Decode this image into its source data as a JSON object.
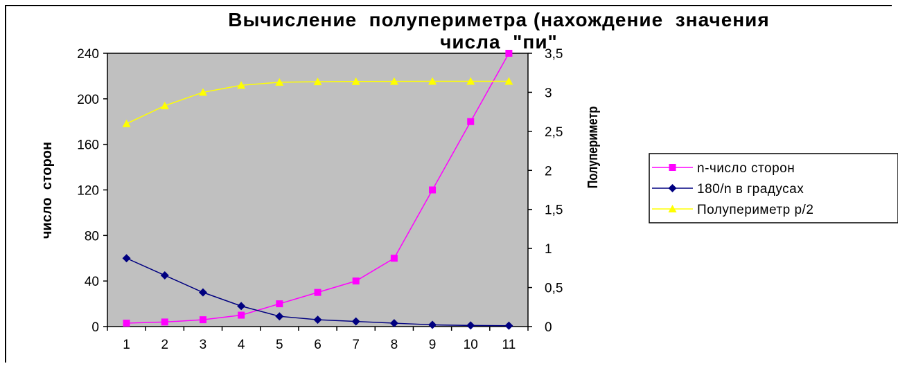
{
  "chart_data": {
    "type": "line",
    "title_line1": "Вычисление  полупериметра (нахождение  значения",
    "title_line2": "числа  \"пи\"",
    "categories": [
      "1",
      "2",
      "3",
      "4",
      "5",
      "6",
      "7",
      "8",
      "9",
      "10",
      "11"
    ],
    "y_left": {
      "label": "число  сторон",
      "min": 0,
      "max": 240,
      "ticks": [
        "0",
        "40",
        "80",
        "120",
        "160",
        "200",
        "240"
      ]
    },
    "y_right": {
      "label": "Полупериметр",
      "min": 0,
      "max": 3.5,
      "ticks": [
        "0",
        "0,5",
        "1",
        "1,5",
        "2",
        "2,5",
        "3",
        "3,5"
      ]
    },
    "plot_background": "#c0c0c0",
    "grid": false,
    "legend_position": "right",
    "series": [
      {
        "name": "n-число  сторон",
        "axis": "left",
        "color": "#ff00ff",
        "marker": "square",
        "values": [
          3,
          4,
          6,
          10,
          20,
          30,
          40,
          60,
          120,
          180,
          240
        ]
      },
      {
        "name": "180/n  в  градусах",
        "axis": "left",
        "color": "#000080",
        "marker": "diamond",
        "values": [
          60,
          45,
          30,
          18,
          9,
          6,
          4.5,
          3,
          1.5,
          1,
          0.75
        ]
      },
      {
        "name": "Полупериметр р/2",
        "axis": "right",
        "color": "#ffff00",
        "marker": "triangle",
        "values": [
          2.598,
          2.828,
          3.0,
          3.09,
          3.129,
          3.136,
          3.139,
          3.14,
          3.141,
          3.141,
          3.141
        ]
      }
    ]
  }
}
